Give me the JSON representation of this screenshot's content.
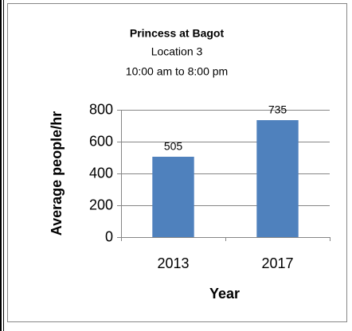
{
  "chart_data": {
    "type": "bar",
    "title": "Princess at Bagot",
    "subtitle": [
      "Location 3",
      "10:00 am to 8:00 pm"
    ],
    "categories": [
      "2013",
      "2017"
    ],
    "values": [
      505,
      735
    ],
    "color": "#4f81bd",
    "x_label": "Year",
    "y_label": "Average people/hr",
    "ylim": [
      0,
      800
    ],
    "yticks": [
      0,
      200,
      400,
      600,
      800
    ],
    "grid": true
  }
}
